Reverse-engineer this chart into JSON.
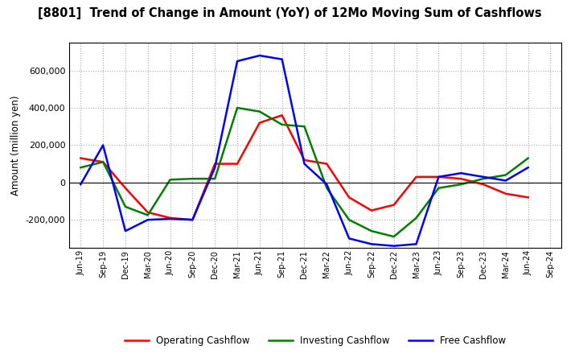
{
  "title": "[8801]  Trend of Change in Amount (YoY) of 12Mo Moving Sum of Cashflows",
  "ylabel": "Amount (million yen)",
  "x_labels": [
    "Jun-19",
    "Sep-19",
    "Dec-19",
    "Mar-20",
    "Jun-20",
    "Sep-20",
    "Dec-20",
    "Mar-21",
    "Jun-21",
    "Sep-21",
    "Dec-21",
    "Mar-22",
    "Jun-22",
    "Sep-22",
    "Dec-22",
    "Mar-23",
    "Jun-23",
    "Sep-23",
    "Dec-23",
    "Mar-24",
    "Jun-24",
    "Sep-24"
  ],
  "operating": [
    130000,
    110000,
    -30000,
    -160000,
    -190000,
    -200000,
    100000,
    100000,
    320000,
    360000,
    120000,
    100000,
    -80000,
    -150000,
    -120000,
    30000,
    30000,
    20000,
    -10000,
    -60000,
    -80000,
    null
  ],
  "investing": [
    80000,
    110000,
    -130000,
    -175000,
    15000,
    20000,
    20000,
    400000,
    380000,
    310000,
    300000,
    -30000,
    -200000,
    -260000,
    -290000,
    -190000,
    -30000,
    -10000,
    20000,
    40000,
    130000,
    null
  ],
  "free": [
    -10000,
    200000,
    -260000,
    -200000,
    -195000,
    -200000,
    80000,
    650000,
    680000,
    660000,
    100000,
    -10000,
    -300000,
    -330000,
    -340000,
    -330000,
    30000,
    50000,
    30000,
    10000,
    80000,
    null
  ],
  "colors": {
    "operating": "#ff0000",
    "investing": "#008000",
    "free": "#0000ff"
  },
  "ylim": [
    -350000,
    750000
  ],
  "yticks": [
    -200000,
    0,
    200000,
    400000,
    600000
  ],
  "background": "#ffffff",
  "grid_color": "#aaaaaa"
}
